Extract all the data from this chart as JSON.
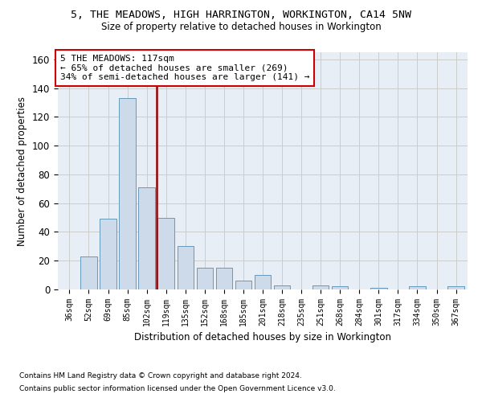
{
  "title": "5, THE MEADOWS, HIGH HARRINGTON, WORKINGTON, CA14 5NW",
  "subtitle": "Size of property relative to detached houses in Workington",
  "xlabel": "Distribution of detached houses by size in Workington",
  "ylabel": "Number of detached properties",
  "bar_color": "#cddaea",
  "bar_edge_color": "#6699bb",
  "grid_color": "#cccccc",
  "bg_color": "#e8eef6",
  "vline_color": "#990000",
  "vline_x": 4.5,
  "annotation_text": "5 THE MEADOWS: 117sqm\n← 65% of detached houses are smaller (269)\n34% of semi-detached houses are larger (141) →",
  "annotation_box_color": "#ffffff",
  "annotation_edge_color": "#cc0000",
  "categories": [
    "36sqm",
    "52sqm",
    "69sqm",
    "85sqm",
    "102sqm",
    "119sqm",
    "135sqm",
    "152sqm",
    "168sqm",
    "185sqm",
    "201sqm",
    "218sqm",
    "235sqm",
    "251sqm",
    "268sqm",
    "284sqm",
    "301sqm",
    "317sqm",
    "334sqm",
    "350sqm",
    "367sqm"
  ],
  "values": [
    0,
    23,
    49,
    133,
    71,
    50,
    30,
    15,
    15,
    6,
    10,
    3,
    0,
    3,
    2,
    0,
    1,
    0,
    2,
    0,
    2
  ],
  "ylim": [
    0,
    165
  ],
  "yticks": [
    0,
    20,
    40,
    60,
    80,
    100,
    120,
    140,
    160
  ],
  "footnote1": "Contains HM Land Registry data © Crown copyright and database right 2024.",
  "footnote2": "Contains public sector information licensed under the Open Government Licence v3.0."
}
